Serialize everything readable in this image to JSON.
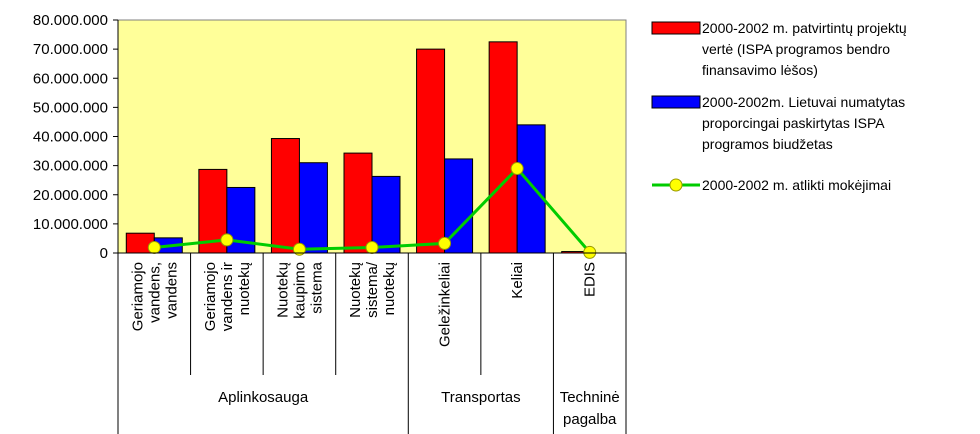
{
  "chart_data": {
    "type": "bar",
    "ylim": [
      0,
      80000000
    ],
    "y_ticks": [
      "80.000.000",
      "70.000.000",
      "60.000.000",
      "50.000.000",
      "40.000.000",
      "30.000.000",
      "20.000.000",
      "10.000.000",
      "0"
    ],
    "categories": [
      [
        "Geriamojo",
        "vandens,",
        "vandens"
      ],
      [
        "Geriamojo",
        "vandens ir",
        "nuotekų"
      ],
      [
        "Nuotekų",
        "kaupimo",
        "sistema"
      ],
      [
        "Nuotekų",
        "sistema/",
        "nuotekų"
      ],
      [
        "Geležinkeliai"
      ],
      [
        "Keliai"
      ],
      [
        "EDIS"
      ]
    ],
    "groups": [
      {
        "label": [
          "Aplinkosauga"
        ],
        "span": [
          0,
          3
        ]
      },
      {
        "label": [
          "Transportas"
        ],
        "span": [
          4,
          5
        ]
      },
      {
        "label": [
          "Techninė",
          "pagalba"
        ],
        "span": [
          6,
          6
        ]
      }
    ],
    "series": [
      {
        "name": "2000-2002 m. patvirtintų projektų vertė (ISPA programos bendro finansavimo lėšos)",
        "type": "bar",
        "color": "#ff0000",
        "values": [
          6800000,
          28700000,
          39300000,
          34300000,
          70000000,
          72500000,
          500000
        ]
      },
      {
        "name": "2000-2002m. Lietuvai numatytas proporcingai paskirtytas ISPA programos biudžetas",
        "type": "bar",
        "color": "#0000ff",
        "values": [
          5200000,
          22500000,
          31000000,
          26300000,
          32300000,
          44000000,
          0
        ]
      },
      {
        "name": "2000-2002 m. atlikti mokėjimai",
        "type": "line",
        "color": "#00cc00",
        "marker_color": "#ffff00",
        "values": [
          1900000,
          4500000,
          1300000,
          1900000,
          3300000,
          29000000,
          200000
        ]
      }
    ],
    "legend": {
      "position": "right",
      "entries": [
        [
          "2000-2002 m. patvirtintų projektų",
          "vertė (ISPA programos bendro",
          "finansavimo lėšos)"
        ],
        [
          "2000-2002m. Lietuvai numatytas",
          "proporcingai paskirtytas ISPA",
          "programos biudžetas"
        ],
        [
          "2000-2002 m. atlikti mokėjimai"
        ]
      ]
    },
    "plot_background": "#ffff99",
    "grid": false
  }
}
